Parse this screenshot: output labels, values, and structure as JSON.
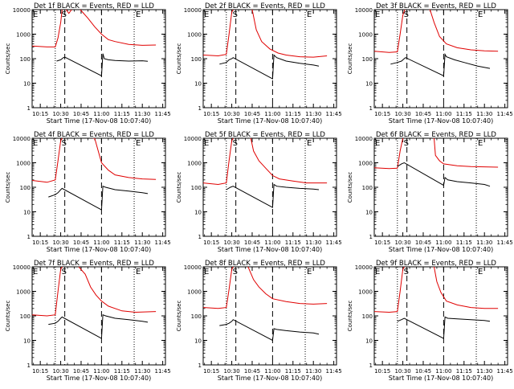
{
  "colors": {
    "events": "#000000",
    "lld": "#e00000",
    "axis": "#000000",
    "background": "#ffffff"
  },
  "shared": {
    "title_suffix": "BLACK = Events, RED = LLD",
    "ylabel": "Counts/sec",
    "xlabel": "Start Time (17-Nov-08 10:07:40)",
    "x_ticks": [
      "10:15",
      "10:30",
      "10:45",
      "11:00",
      "11:15",
      "11:30",
      "11:45"
    ],
    "y_ticks": [
      "1",
      "10",
      "100",
      "1000",
      "10000"
    ],
    "markers": {
      "start": "S",
      "end": "E"
    }
  },
  "chart_data": [
    {
      "type": "line",
      "title": "Det 1f BLACK = Events, RED = LLD",
      "xlabel": "Start Time (17-Nov-08 10:07:40)",
      "ylabel": "Counts/sec",
      "xlim": [
        "10:09",
        "11:47"
      ],
      "ylim": [
        1,
        10000
      ],
      "y_scale": "log",
      "grid": false,
      "vlines": {
        "dotted": [
          "10:26",
          "11:24"
        ],
        "dashed": [
          "10:33",
          "11:00"
        ]
      },
      "series": [
        {
          "name": "LLD",
          "color": "#e00000",
          "x": [
            "10:09",
            "10:20",
            "10:26",
            "10:28",
            "10:30",
            "10:31",
            "10:32",
            "10:34",
            "10:36",
            "10:38",
            "10:40",
            "10:43",
            "10:46",
            "10:50",
            "10:55",
            "11:00",
            "11:05",
            "11:10",
            "11:20",
            "11:30",
            "11:40"
          ],
          "y": [
            330,
            300,
            300,
            700,
            3000,
            10000,
            12000,
            10000,
            7000,
            10000,
            12000,
            12000,
            8000,
            4500,
            2000,
            1000,
            600,
            500,
            380,
            350,
            360
          ]
        },
        {
          "name": "Events",
          "color": "#000000",
          "x": [
            "10:27",
            "10:30",
            "10:31",
            "10:32",
            "10:33",
            "11:00",
            "11:01",
            "11:02",
            "11:05",
            "11:10",
            "11:20",
            "11:30",
            "11:34"
          ],
          "y": [
            80,
            90,
            100,
            110,
            115,
            20,
            160,
            100,
            90,
            85,
            80,
            82,
            78
          ]
        }
      ]
    },
    {
      "type": "line",
      "title": "Det 2f BLACK = Events, RED = LLD",
      "xlabel": "Start Time (17-Nov-08 10:07:40)",
      "ylabel": "Counts/sec",
      "xlim": [
        "10:09",
        "11:47"
      ],
      "ylim": [
        1,
        10000
      ],
      "y_scale": "log",
      "grid": false,
      "vlines": {
        "dotted": [
          "10:26",
          "11:24"
        ],
        "dashed": [
          "10:33",
          "11:00"
        ]
      },
      "series": [
        {
          "name": "LLD",
          "color": "#e00000",
          "x": [
            "10:09",
            "10:20",
            "10:26",
            "10:28",
            "10:30",
            "10:32",
            "10:40",
            "10:45",
            "10:48",
            "10:52",
            "10:58",
            "11:04",
            "11:10",
            "11:20",
            "11:30",
            "11:40"
          ],
          "y": [
            140,
            130,
            150,
            1000,
            8000,
            12000,
            12000,
            10000,
            1500,
            500,
            250,
            170,
            140,
            120,
            115,
            130
          ]
        },
        {
          "name": "Events",
          "color": "#000000",
          "x": [
            "10:21",
            "10:26",
            "10:28",
            "10:30",
            "10:31",
            "11:00",
            "11:01",
            "11:03",
            "11:10",
            "11:20",
            "11:30",
            "11:34"
          ],
          "y": [
            60,
            70,
            90,
            100,
            110,
            15,
            140,
            110,
            80,
            65,
            55,
            50
          ]
        }
      ]
    },
    {
      "type": "line",
      "title": "Det 3f BLACK = Events, RED = LLD",
      "xlabel": "Start Time (17-Nov-08 10:07:40)",
      "ylabel": "Counts/sec",
      "xlim": [
        "10:09",
        "11:47"
      ],
      "ylim": [
        1,
        10000
      ],
      "y_scale": "log",
      "grid": false,
      "vlines": {
        "dotted": [
          "10:26",
          "11:24"
        ],
        "dashed": [
          "10:33",
          "11:00"
        ]
      },
      "series": [
        {
          "name": "LLD",
          "color": "#e00000",
          "x": [
            "10:09",
            "10:20",
            "10:26",
            "10:28",
            "10:30",
            "10:32",
            "10:45",
            "10:50",
            "10:53",
            "10:57",
            "11:02",
            "11:10",
            "11:20",
            "11:30",
            "11:40"
          ],
          "y": [
            200,
            180,
            190,
            1000,
            6000,
            12000,
            12000,
            10000,
            3000,
            800,
            400,
            280,
            230,
            210,
            200
          ]
        },
        {
          "name": "Events",
          "color": "#000000",
          "x": [
            "10:21",
            "10:26",
            "10:29",
            "10:31",
            "10:32",
            "11:00",
            "11:01",
            "11:02",
            "11:08",
            "11:15",
            "11:25",
            "11:34"
          ],
          "y": [
            60,
            70,
            80,
            100,
            110,
            20,
            150,
            120,
            90,
            70,
            50,
            40
          ]
        }
      ]
    },
    {
      "type": "line",
      "title": "Det 4f BLACK = Events, RED = LLD",
      "xlabel": "Start Time (17-Nov-08 10:07:40)",
      "ylabel": "Counts/sec",
      "xlim": [
        "10:09",
        "11:47"
      ],
      "ylim": [
        1,
        10000
      ],
      "y_scale": "log",
      "grid": false,
      "vlines": {
        "dotted": [
          "10:26",
          "11:24"
        ],
        "dashed": [
          "10:33",
          "11:00"
        ]
      },
      "series": [
        {
          "name": "LLD",
          "color": "#e00000",
          "x": [
            "10:09",
            "10:20",
            "10:26",
            "10:28",
            "10:30",
            "10:32",
            "10:45",
            "10:55",
            "10:58",
            "11:00",
            "11:05",
            "11:10",
            "11:20",
            "11:30",
            "11:40"
          ],
          "y": [
            190,
            160,
            200,
            1200,
            8000,
            12000,
            12000,
            10000,
            2500,
            1000,
            500,
            320,
            250,
            220,
            210
          ]
        },
        {
          "name": "Events",
          "color": "#000000",
          "x": [
            "10:21",
            "10:26",
            "10:28",
            "10:30",
            "10:31",
            "11:00",
            "11:01",
            "11:03",
            "11:10",
            "11:20",
            "11:30",
            "11:34"
          ],
          "y": [
            40,
            50,
            60,
            80,
            90,
            12,
            110,
            100,
            80,
            70,
            60,
            55
          ]
        }
      ]
    },
    {
      "type": "line",
      "title": "Det 5f BLACK = Events, RED = LLD",
      "xlabel": "Start Time (17-Nov-08 10:07:40)",
      "ylabel": "Counts/sec",
      "xlim": [
        "10:09",
        "11:47"
      ],
      "ylim": [
        1,
        10000
      ],
      "y_scale": "log",
      "grid": false,
      "vlines": {
        "dotted": [
          "10:26",
          "11:24"
        ],
        "dashed": [
          "10:33",
          "11:00"
        ]
      },
      "series": [
        {
          "name": "LLD",
          "color": "#e00000",
          "x": [
            "10:09",
            "10:20",
            "10:26",
            "10:28",
            "10:30",
            "10:32",
            "10:40",
            "10:44",
            "10:46",
            "10:50",
            "10:55",
            "11:00",
            "11:05",
            "11:15",
            "11:25",
            "11:40"
          ],
          "y": [
            150,
            130,
            150,
            1200,
            8000,
            12000,
            12000,
            10000,
            3000,
            1200,
            600,
            300,
            220,
            180,
            150,
            150
          ]
        },
        {
          "name": "Events",
          "color": "#000000",
          "x": [
            "10:26",
            "10:29",
            "10:31",
            "11:00",
            "11:01",
            "11:03",
            "11:10",
            "11:20",
            "11:30",
            "11:34"
          ],
          "y": [
            80,
            100,
            110,
            15,
            130,
            110,
            100,
            90,
            85,
            80
          ]
        }
      ]
    },
    {
      "type": "line",
      "title": "Det 6f BLACK = Events, RED = LLD",
      "xlabel": "Start Time (17-Nov-08 10:07:40)",
      "ylabel": "Counts/sec",
      "xlim": [
        "10:09",
        "11:47"
      ],
      "ylim": [
        1,
        10000
      ],
      "y_scale": "log",
      "grid": false,
      "vlines": {
        "dotted": [
          "10:26",
          "11:24"
        ],
        "dashed": [
          "10:33",
          "11:00"
        ]
      },
      "series": [
        {
          "name": "LLD",
          "color": "#e00000",
          "x": [
            "10:09",
            "10:20",
            "10:26",
            "10:28",
            "10:30",
            "10:32",
            "10:48",
            "10:53",
            "10:54",
            "10:57",
            "11:00",
            "11:10",
            "11:20",
            "11:30",
            "11:40"
          ],
          "y": [
            620,
            580,
            600,
            3000,
            10000,
            12000,
            12000,
            10000,
            2000,
            1200,
            900,
            750,
            700,
            680,
            660
          ]
        },
        {
          "name": "Events",
          "color": "#000000",
          "x": [
            "10:26",
            "10:29",
            "10:31",
            "11:00",
            "11:01",
            "11:03",
            "11:10",
            "11:20",
            "11:30",
            "11:34"
          ],
          "y": [
            700,
            900,
            1000,
            120,
            250,
            200,
            170,
            150,
            130,
            110
          ]
        }
      ]
    },
    {
      "type": "line",
      "title": "Det 7f BLACK = Events, RED = LLD",
      "xlabel": "Start Time (17-Nov-08 10:07:40)",
      "ylabel": "Counts/sec",
      "xlim": [
        "10:09",
        "11:47"
      ],
      "ylim": [
        1,
        10000
      ],
      "y_scale": "log",
      "grid": false,
      "vlines": {
        "dotted": [
          "10:26",
          "11:24"
        ],
        "dashed": [
          "10:33",
          "11:00"
        ]
      },
      "series": [
        {
          "name": "LLD",
          "color": "#e00000",
          "x": [
            "10:09",
            "10:20",
            "10:26",
            "10:28",
            "10:30",
            "10:32",
            "10:42",
            "10:48",
            "10:52",
            "10:56",
            "11:00",
            "11:05",
            "11:15",
            "11:25",
            "11:40"
          ],
          "y": [
            110,
            100,
            110,
            1000,
            8000,
            12000,
            12000,
            5000,
            1500,
            700,
            400,
            250,
            160,
            140,
            150
          ]
        },
        {
          "name": "Events",
          "color": "#000000",
          "x": [
            "10:21",
            "10:26",
            "10:28",
            "10:30",
            "10:31",
            "11:00",
            "11:01",
            "11:03",
            "11:10",
            "11:20",
            "11:30",
            "11:34"
          ],
          "y": [
            45,
            50,
            60,
            80,
            90,
            12,
            110,
            100,
            80,
            70,
            60,
            55
          ]
        }
      ]
    },
    {
      "type": "line",
      "title": "Det 8f BLACK = Events, RED = LLD",
      "xlabel": "Start Time (17-Nov-08 10:07:40)",
      "ylabel": "Counts/sec",
      "xlim": [
        "10:09",
        "11:47"
      ],
      "ylim": [
        1,
        10000
      ],
      "y_scale": "log",
      "grid": false,
      "vlines": {
        "dotted": [
          "10:26",
          "11:24"
        ],
        "dashed": [
          "10:33",
          "11:00"
        ]
      },
      "series": [
        {
          "name": "LLD",
          "color": "#e00000",
          "x": [
            "10:09",
            "10:20",
            "10:26",
            "10:28",
            "10:30",
            "10:32",
            "10:38",
            "10:42",
            "10:46",
            "10:50",
            "10:55",
            "11:00",
            "11:10",
            "11:20",
            "11:30",
            "11:40"
          ],
          "y": [
            220,
            200,
            220,
            1200,
            8000,
            12000,
            12000,
            10000,
            3000,
            1500,
            800,
            500,
            380,
            320,
            300,
            320
          ]
        },
        {
          "name": "Events",
          "color": "#000000",
          "x": [
            "10:21",
            "10:26",
            "10:28",
            "10:30",
            "10:31",
            "11:00",
            "11:01",
            "11:03",
            "11:10",
            "11:20",
            "11:30",
            "11:34"
          ],
          "y": [
            40,
            45,
            50,
            60,
            70,
            10,
            30,
            28,
            25,
            22,
            20,
            18
          ]
        }
      ]
    },
    {
      "type": "line",
      "title": "Det 9f BLACK = Events, RED = LLD",
      "xlabel": "Start Time (17-Nov-08 10:07:40)",
      "ylabel": "Counts/sec",
      "xlim": [
        "10:09",
        "11:47"
      ],
      "ylim": [
        1,
        10000
      ],
      "y_scale": "log",
      "grid": false,
      "vlines": {
        "dotted": [
          "10:26",
          "11:24"
        ],
        "dashed": [
          "10:33",
          "11:00"
        ]
      },
      "series": [
        {
          "name": "LLD",
          "color": "#e00000",
          "x": [
            "10:09",
            "10:20",
            "10:26",
            "10:28",
            "10:30",
            "10:32",
            "10:48",
            "10:53",
            "10:55",
            "10:58",
            "11:02",
            "11:10",
            "11:20",
            "11:30",
            "11:40"
          ],
          "y": [
            150,
            140,
            150,
            1000,
            8000,
            12000,
            12000,
            10000,
            2500,
            900,
            400,
            280,
            220,
            200,
            200
          ]
        },
        {
          "name": "Events",
          "color": "#000000",
          "x": [
            "10:26",
            "10:29",
            "10:31",
            "11:00",
            "11:01",
            "11:03",
            "11:10",
            "11:20",
            "11:30",
            "11:34"
          ],
          "y": [
            60,
            70,
            80,
            12,
            90,
            80,
            75,
            70,
            65,
            60
          ]
        }
      ]
    }
  ]
}
